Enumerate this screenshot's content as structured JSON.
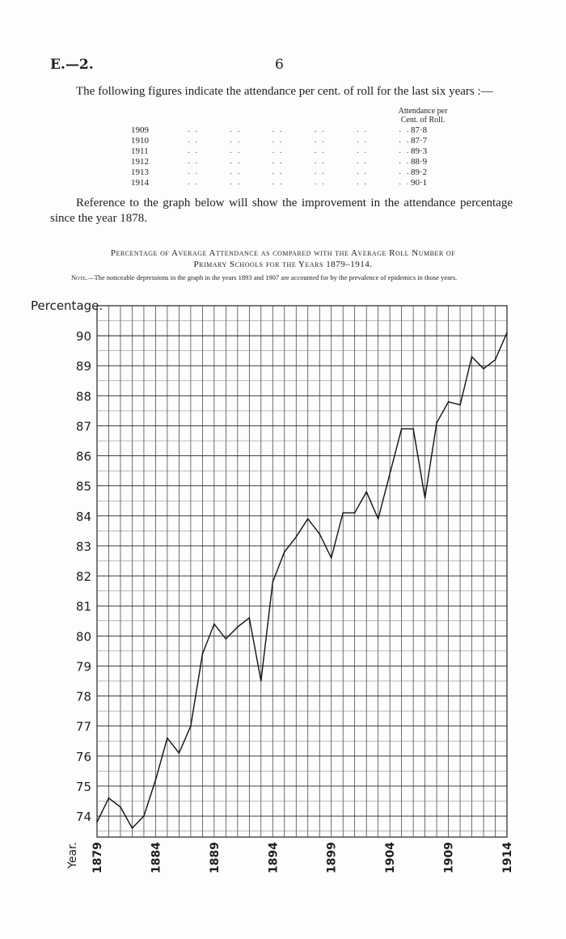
{
  "header": {
    "left": "E.—2.",
    "page_number": "6"
  },
  "intro_paragraph": "The following figures indicate the attendance per cent. of roll for the last six years :—",
  "table": {
    "column_header_line1": "Attendance per",
    "column_header_line2": "Cent. of Roll.",
    "rows": [
      {
        "year": "1909",
        "value": "87·8"
      },
      {
        "year": "1910",
        "value": "87·7"
      },
      {
        "year": "1911",
        "value": "89·3"
      },
      {
        "year": "1912",
        "value": "88·9"
      },
      {
        "year": "1913",
        "value": "89·2"
      },
      {
        "year": "1914",
        "value": "90·1"
      }
    ]
  },
  "reference_paragraph": "Reference to the graph below will show the improvement in the attendance percentage since the year 1878.",
  "chart_data": {
    "type": "line",
    "title_line1": "Percentage of Average Attendance as compared with the Average Roll Number of",
    "title_line2": "Primary Schools for the Years 1879–1914.",
    "note_label": "Note.",
    "note_text": "—The noticeable depressions in the graph in the years 1893 and 1907 are accounted for by the prevalence of epidemics in those years.",
    "ylabel": "Percentage.",
    "xlabel": "Year.",
    "ylim": [
      73.3,
      91.0
    ],
    "xlim": [
      1879,
      1914
    ],
    "y_ticks": [
      74,
      75,
      76,
      77,
      78,
      79,
      80,
      81,
      82,
      83,
      84,
      85,
      86,
      87,
      88,
      89,
      90
    ],
    "x_tick_labels": [
      "1879",
      "1884",
      "1889",
      "1894",
      "1899",
      "1904",
      "1909",
      "1914"
    ],
    "grid": true,
    "x": [
      1879,
      1880,
      1881,
      1882,
      1883,
      1884,
      1885,
      1886,
      1887,
      1888,
      1889,
      1890,
      1891,
      1892,
      1893,
      1894,
      1895,
      1896,
      1897,
      1898,
      1899,
      1900,
      1901,
      1902,
      1903,
      1904,
      1905,
      1906,
      1907,
      1908,
      1909,
      1910,
      1911,
      1912,
      1913,
      1914
    ],
    "y": [
      73.8,
      74.6,
      74.3,
      73.6,
      74.0,
      75.2,
      76.6,
      76.1,
      77.0,
      79.4,
      80.4,
      79.9,
      80.3,
      80.6,
      78.5,
      81.8,
      82.8,
      83.3,
      83.9,
      83.4,
      82.6,
      84.1,
      84.1,
      84.8,
      83.9,
      85.4,
      86.9,
      86.9,
      84.6,
      87.1,
      87.8,
      87.7,
      89.3,
      88.9,
      89.2,
      90.1
    ]
  }
}
